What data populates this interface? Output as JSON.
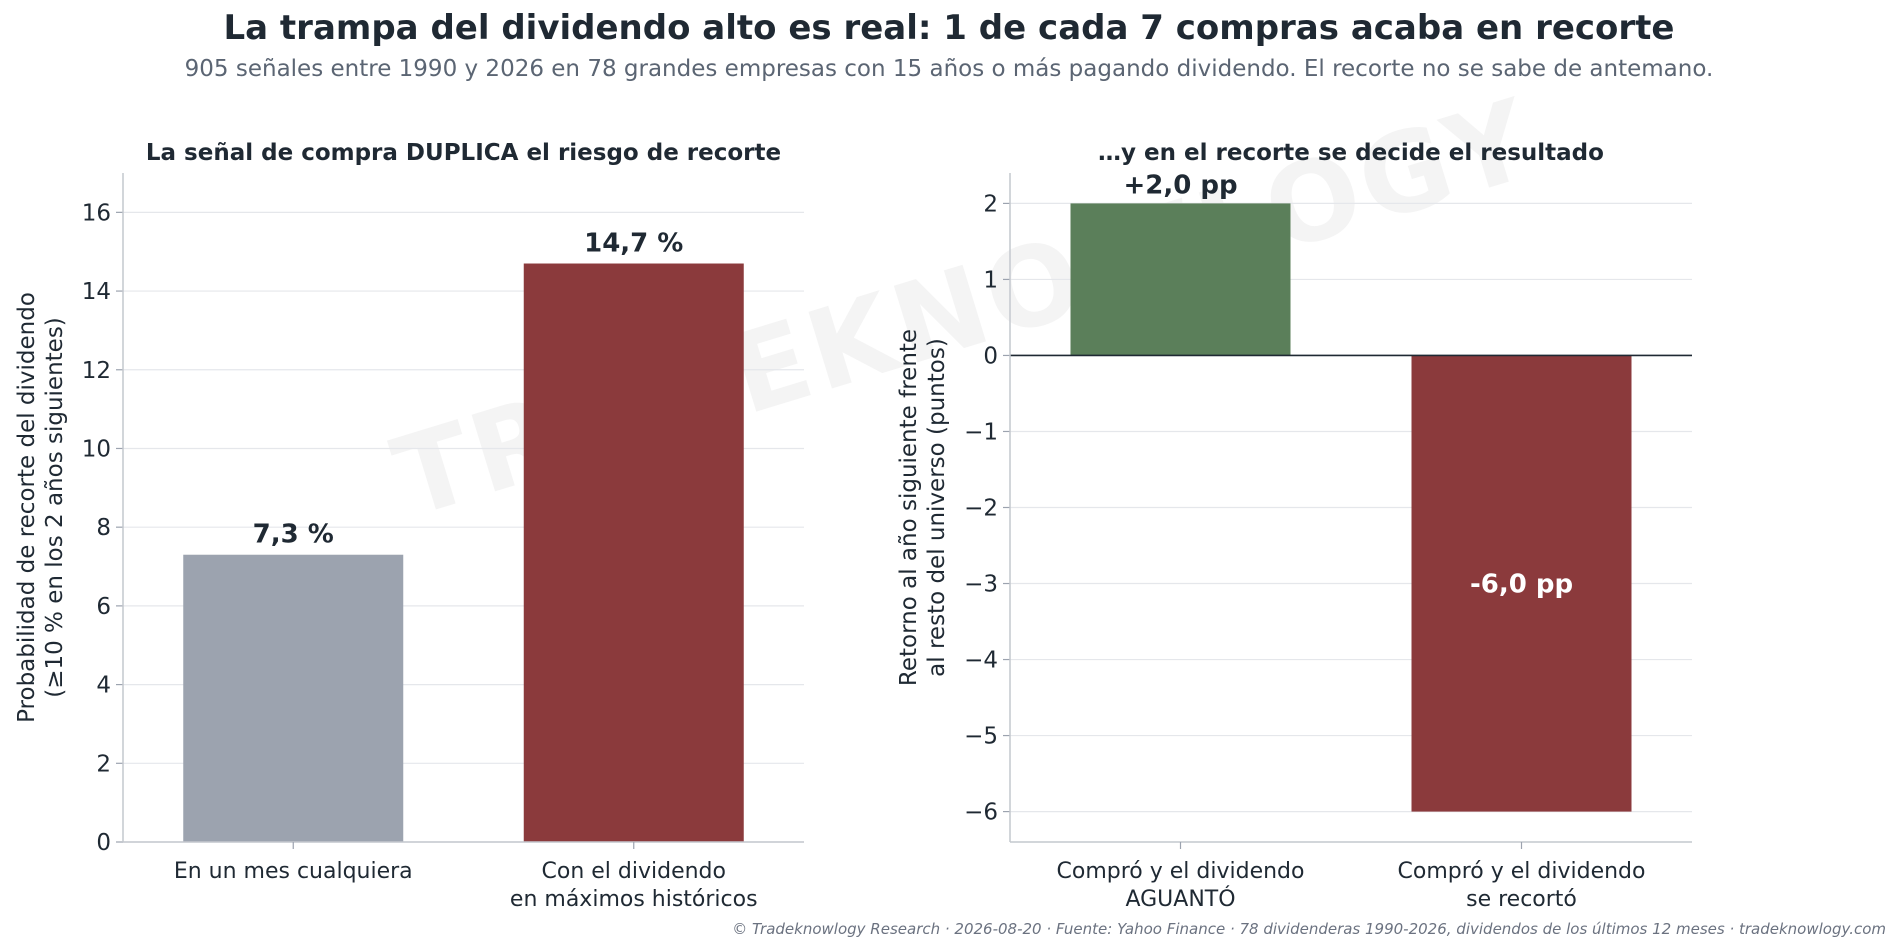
{
  "title": "La trampa del dividendo alto es real: 1 de cada 7 compras acaba en recorte",
  "subtitle": "905 señales entre 1990 y 2026 en 78 grandes empresas con 15 años o más pagando dividendo. El recorte no se sabe de antemano.",
  "watermark": "TRADEKNOWLOGY",
  "footer": "© Tradeknowlogy Research   ·   2026-08-20   ·   Fuente: Yahoo Finance · 78 dividenderas 1990-2026, dividendos de los últimos 12 meses   ·   tradeknowlogy.com",
  "chart_data": [
    {
      "type": "bar",
      "title": "La señal de compra DUPLICA el riesgo de recorte",
      "ylabel_lines": [
        "Probabilidad de recorte del dividendo",
        "(≥10 % en los 2 años siguientes)"
      ],
      "categories": [
        [
          "En un mes cualquiera"
        ],
        [
          "Con el dividendo",
          "en máximos históricos"
        ]
      ],
      "values": [
        7.3,
        14.7
      ],
      "value_labels": [
        "7,3 %",
        "14,7 %"
      ],
      "colors": [
        "#9ca3af",
        "#8b3a3c"
      ],
      "ylim": [
        0,
        17
      ],
      "yticks": [
        0,
        2,
        4,
        6,
        8,
        10,
        12,
        14,
        16
      ],
      "grid": true
    },
    {
      "type": "bar",
      "title": "…y en el recorte se decide el resultado",
      "ylabel_lines": [
        "Retorno al año siguiente frente",
        "al resto del universo (puntos)"
      ],
      "categories": [
        [
          "Compró y el dividendo",
          "AGUANTÓ"
        ],
        [
          "Compró y el dividendo",
          "se recortó"
        ]
      ],
      "values": [
        2.0,
        -6.0
      ],
      "value_labels": [
        "+2,0 pp",
        "-6,0 pp"
      ],
      "colors": [
        "#5b7f5a",
        "#8b3a3c"
      ],
      "ylim": [
        -6.4,
        2.4
      ],
      "yticks": [
        -6,
        -5,
        -4,
        -3,
        -2,
        -1,
        0,
        1,
        2
      ],
      "ytick_labels": [
        "−6",
        "−5",
        "−4",
        "−3",
        "−2",
        "−1",
        "0",
        "1",
        "2"
      ],
      "grid": true
    }
  ]
}
